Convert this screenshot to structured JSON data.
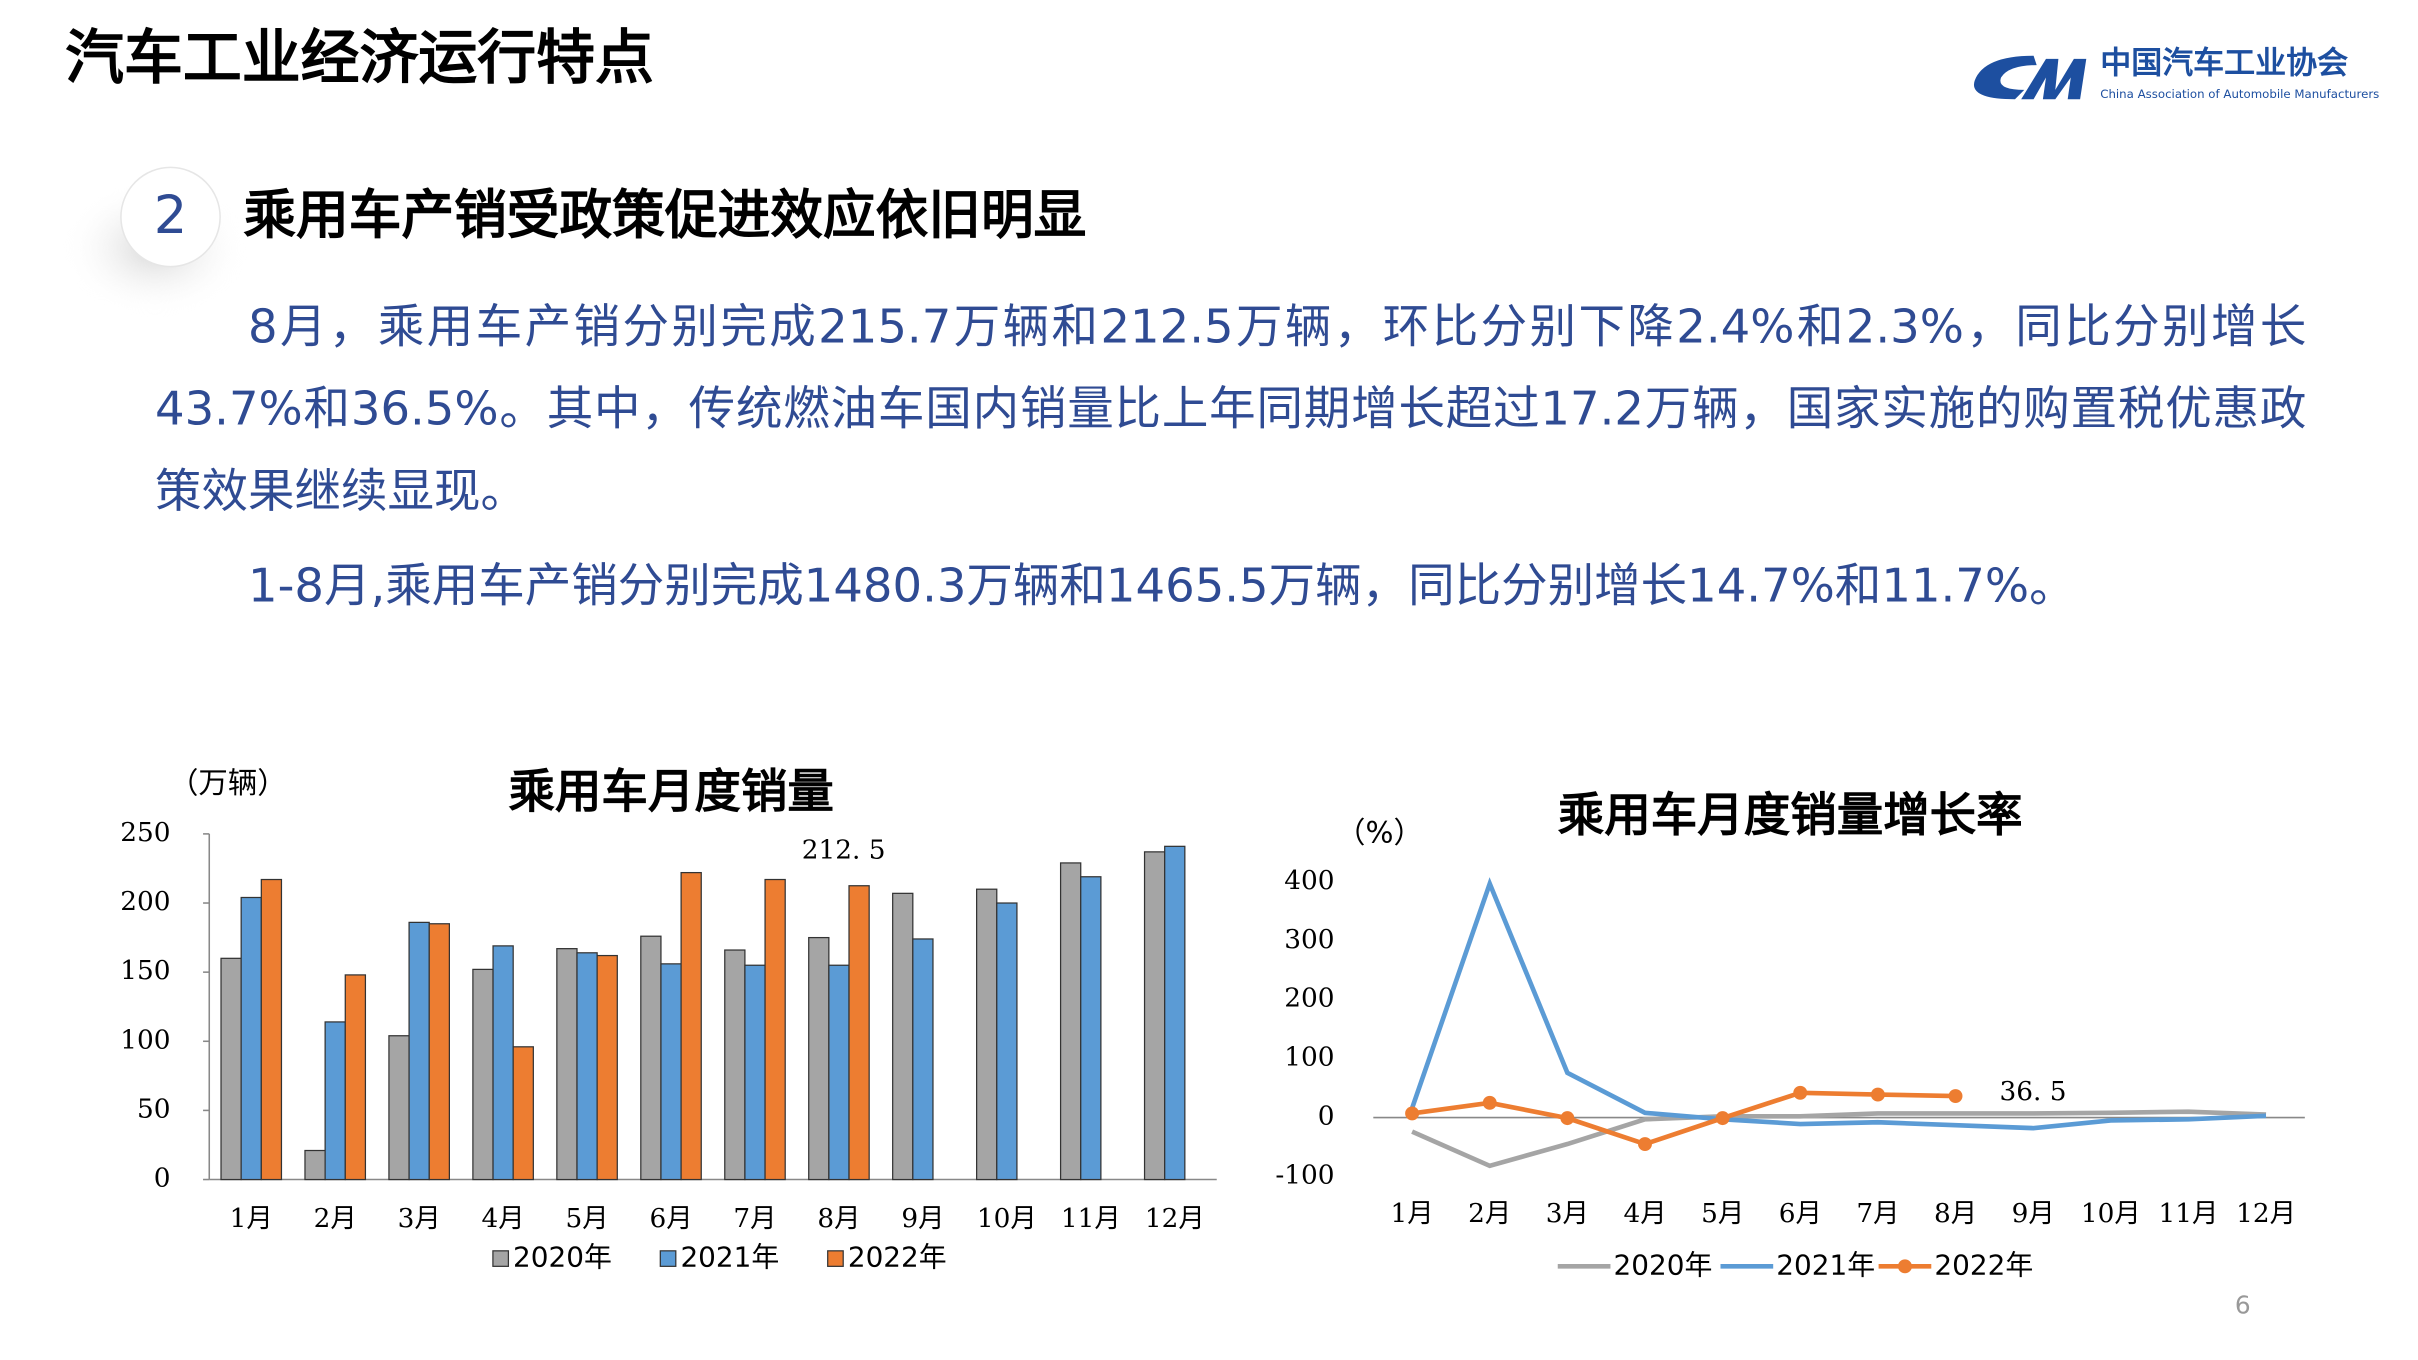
{
  "header": {
    "title": "汽车工业经济运行特点",
    "logo_name": "中国汽车工业协会",
    "logo_subtitle": "China Association of Automobile Manufacturers"
  },
  "section": {
    "number": "2",
    "heading": "乘用车产销受政策促进效应依旧明显"
  },
  "paragraphs": [
    "8月，乘用车产销分别完成215.7万辆和212.5万辆，环比分别下降2.4%和2.3%，同比分别增长43.7%和36.5%。其中，传统燃油车国内销量比上年同期增长超过17.2万辆，国家实施的购置税优惠政策效果继续显现。",
    "1-8月,乘用车产销分别完成1480.3万辆和1465.5万辆，同比分别增长14.7%和11.7%。"
  ],
  "chart_data": [
    {
      "type": "bar",
      "title": "乘用车月度销量",
      "y_label": "（万辆）",
      "categories": [
        "1月",
        "2月",
        "3月",
        "4月",
        "5月",
        "6月",
        "7月",
        "8月",
        "9月",
        "10月",
        "11月",
        "12月"
      ],
      "series": [
        {
          "name": "2020年",
          "color": "#a5a5a5",
          "values": [
            160,
            21,
            104,
            152,
            167,
            176,
            166,
            175,
            207,
            210,
            229,
            237
          ]
        },
        {
          "name": "2021年",
          "color": "#5b9bd5",
          "values": [
            204,
            114,
            186,
            169,
            164,
            156,
            155,
            155,
            174,
            200,
            219,
            241
          ]
        },
        {
          "name": "2022年",
          "color": "#ed7d31",
          "values": [
            217,
            148,
            185,
            96,
            162,
            222,
            217,
            212.5,
            null,
            null,
            null,
            null
          ],
          "value_labels": [
            null,
            null,
            null,
            null,
            null,
            null,
            null,
            "212. 5",
            null,
            null,
            null,
            null
          ]
        }
      ],
      "ylim": [
        0,
        250
      ],
      "yticks": [
        0,
        50,
        100,
        150,
        200,
        250
      ],
      "grid": false,
      "legend": "bottom"
    },
    {
      "type": "line",
      "title": "乘用车月度销量增长率",
      "y_label": "（%）",
      "categories": [
        "1月",
        "2月",
        "3月",
        "4月",
        "5月",
        "6月",
        "7月",
        "8月",
        "9月",
        "10月",
        "11月",
        "12月"
      ],
      "series": [
        {
          "name": "2020年",
          "color": "#a5a5a5",
          "values": [
            -24,
            -82,
            -45,
            -3,
            2,
            2,
            7,
            7,
            7,
            8,
            10,
            5
          ]
        },
        {
          "name": "2021年",
          "color": "#5b9bd5",
          "values": [
            16,
            397,
            76,
            8,
            -3,
            -11,
            -8,
            -13,
            -18,
            -5,
            -3,
            3
          ]
        },
        {
          "name": "2022年",
          "color": "#ed7d31",
          "markers": true,
          "values": [
            7,
            25,
            -1,
            -45,
            -1,
            42,
            39,
            36.5,
            null,
            null,
            null,
            null
          ],
          "value_labels": [
            null,
            null,
            null,
            null,
            null,
            null,
            null,
            "36. 5",
            null,
            null,
            null,
            null
          ]
        }
      ],
      "ylim": [
        -100,
        400
      ],
      "yticks": [
        -100,
        0,
        100,
        200,
        300,
        400
      ],
      "grid": false,
      "legend": "bottom"
    }
  ],
  "page_number": "6"
}
